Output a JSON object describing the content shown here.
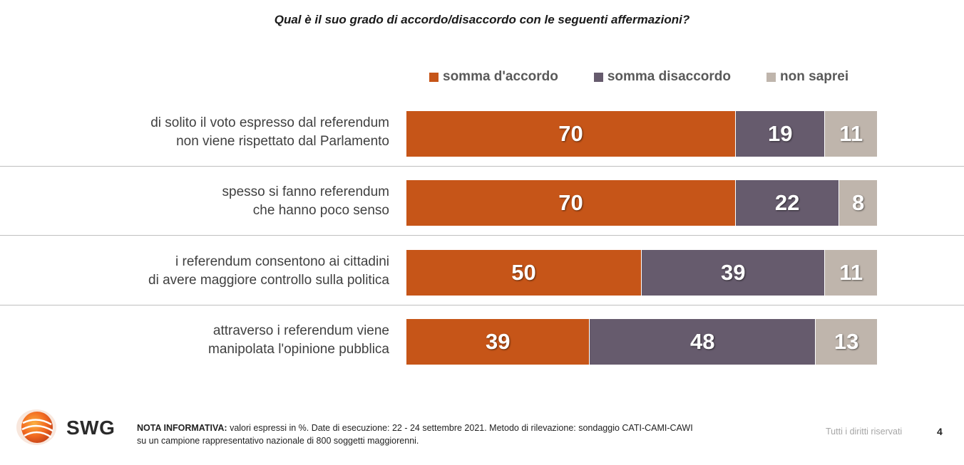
{
  "header": {
    "question": "Qual è il suo grado di accordo/disaccordo con le seguenti affermazioni?"
  },
  "colors": {
    "accordo": "#C65518",
    "disaccordo": "#665B6D",
    "non_saprei": "#BFB5AC"
  },
  "chart_data": {
    "type": "bar",
    "orientation": "horizontal",
    "stacked": true,
    "title": "Qual è il suo grado di accordo/disaccordo con le seguenti affermazioni?",
    "legend_position": "top",
    "xlim": [
      0,
      100
    ],
    "grid": false,
    "legend": [
      "somma d'accordo",
      "somma disaccordo",
      "non saprei"
    ],
    "rows": [
      {
        "line1": "di solito il voto espresso dal referendum",
        "line2": "non viene rispettato dal Parlamento",
        "values": [
          70,
          19,
          11
        ],
        "labels": [
          "70",
          "19",
          "11"
        ]
      },
      {
        "line1": "spesso si fanno referendum",
        "line2": "che hanno poco senso",
        "values": [
          70,
          22,
          8
        ],
        "labels": [
          "70",
          "22",
          "8"
        ]
      },
      {
        "line1": "i referendum consentono ai cittadini",
        "line2": "di avere maggiore controllo sulla politica",
        "values": [
          50,
          39,
          11
        ],
        "labels": [
          "50",
          "39",
          "11"
        ]
      },
      {
        "line1": "attraverso i referendum viene",
        "line2": "manipolata l'opinione pubblica",
        "values": [
          39,
          48,
          13
        ],
        "labels": [
          "39",
          "48",
          "13"
        ]
      }
    ]
  },
  "footer": {
    "brand": "SWG",
    "note_label": "NOTA INFORMATIVA:",
    "note_line1": " valori espressi in %. Date di esecuzione: 22 - 24 settembre 2021. Metodo di rilevazione: sondaggio CATI-CAMI-CAWI",
    "note_line2": "su un campione rappresentativo nazionale di 800 soggetti maggiorenni.",
    "rights": "Tutti i diritti riservati",
    "page_number": "4"
  }
}
